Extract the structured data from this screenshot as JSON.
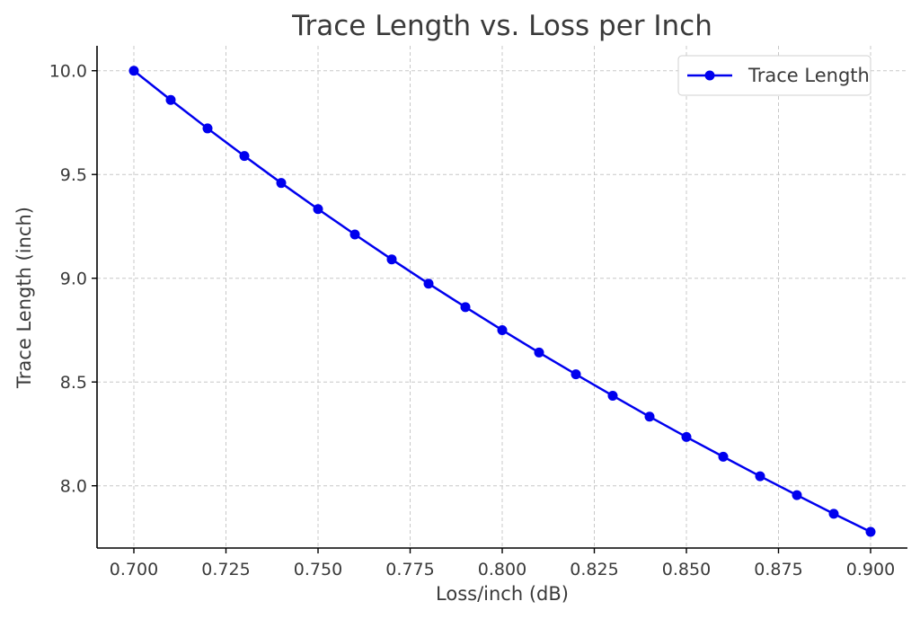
{
  "chart_data": {
    "type": "line",
    "title": "Trace Length vs. Loss per Inch",
    "xlabel": "Loss/inch (dB)",
    "ylabel": "Trace Length (inch)",
    "xlim": [
      0.69,
      0.91
    ],
    "ylim": [
      7.7,
      10.12
    ],
    "x_ticks": [
      0.7,
      0.725,
      0.75,
      0.775,
      0.8,
      0.825,
      0.85,
      0.875,
      0.9
    ],
    "x_tick_labels": [
      "0.700",
      "0.725",
      "0.750",
      "0.775",
      "0.800",
      "0.825",
      "0.850",
      "0.875",
      "0.900"
    ],
    "y_ticks": [
      8.0,
      8.5,
      9.0,
      9.5,
      10.0
    ],
    "y_tick_labels": [
      "8.0",
      "8.5",
      "9.0",
      "9.5",
      "10.0"
    ],
    "grid": true,
    "legend_position": "top-right",
    "series": [
      {
        "name": "Trace Length",
        "color": "#0000ee",
        "marker": "circle",
        "x": [
          0.7,
          0.71,
          0.72,
          0.73,
          0.74,
          0.75,
          0.76,
          0.77,
          0.78,
          0.79,
          0.8,
          0.81,
          0.82,
          0.83,
          0.84,
          0.85,
          0.86,
          0.87,
          0.88,
          0.89,
          0.9
        ],
        "y": [
          10.0,
          9.859,
          9.722,
          9.589,
          9.459,
          9.333,
          9.211,
          9.091,
          8.974,
          8.861,
          8.75,
          8.642,
          8.537,
          8.434,
          8.333,
          8.235,
          8.14,
          8.046,
          7.955,
          7.865,
          7.778
        ]
      }
    ]
  }
}
